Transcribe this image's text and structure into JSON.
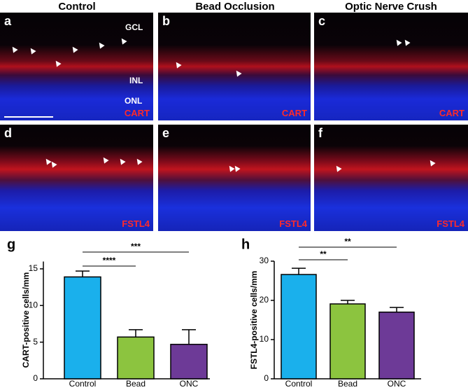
{
  "columns": [
    "Control",
    "Bead Occlusion",
    "Optic Nerve Crush"
  ],
  "panels": [
    {
      "letter": "a",
      "marker": "CART",
      "layers": [
        "GCL",
        "INL",
        "ONL"
      ]
    },
    {
      "letter": "b",
      "marker": "CART"
    },
    {
      "letter": "c",
      "marker": "CART"
    },
    {
      "letter": "d",
      "marker": "FSTL4"
    },
    {
      "letter": "e",
      "marker": "FSTL4"
    },
    {
      "letter": "f",
      "marker": "FSTL4"
    }
  ],
  "chart_data": [
    {
      "type": "bar",
      "panel": "g",
      "ylabel": "CART-positive cells/mm",
      "categories": [
        "Control",
        "Bead",
        "ONC"
      ],
      "values": [
        13.9,
        5.7,
        4.7
      ],
      "errors": [
        0.8,
        1.0,
        2.0
      ],
      "colors": [
        "#1ab0ec",
        "#8cc43f",
        "#6d3a97"
      ],
      "ylim": [
        0,
        16
      ],
      "yticks": [
        0,
        5,
        10,
        15
      ],
      "significance": [
        {
          "label": "****",
          "pair": [
            "Control",
            "Bead"
          ]
        },
        {
          "label": "***",
          "pair": [
            "Control",
            "ONC"
          ]
        }
      ]
    },
    {
      "type": "bar",
      "panel": "h",
      "ylabel": "FSTL4-positive cells/mm",
      "categories": [
        "Control",
        "Bead",
        "ONC"
      ],
      "values": [
        26.6,
        19.1,
        17.0
      ],
      "errors": [
        1.6,
        0.9,
        1.2
      ],
      "colors": [
        "#1ab0ec",
        "#8cc43f",
        "#6d3a97"
      ],
      "ylim": [
        0,
        30
      ],
      "yticks": [
        0,
        10,
        20,
        30
      ],
      "significance": [
        {
          "label": "**",
          "pair": [
            "Control",
            "Bead"
          ]
        },
        {
          "label": "**",
          "pair": [
            "Control",
            "ONC"
          ]
        }
      ]
    }
  ]
}
